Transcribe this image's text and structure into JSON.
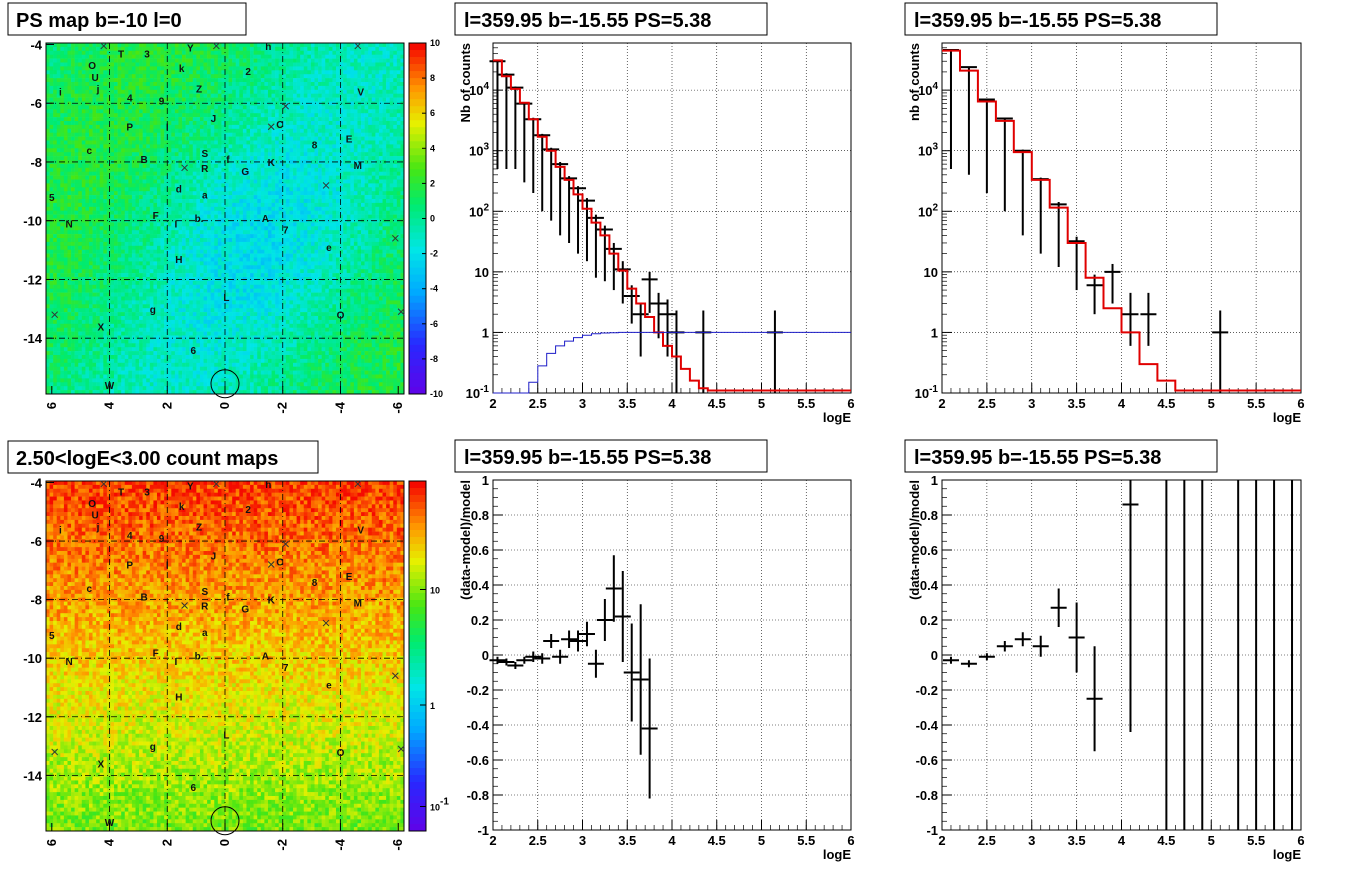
{
  "panels": {
    "map1_title": "PS map b=-10 l=0",
    "map2_title": "2.50<logE<3.00 count maps",
    "spec_title": "l=359.95 b=-15.55 PS=5.38"
  },
  "chart_data": [
    {
      "id": "ps-map",
      "type": "heatmap",
      "title": "PS map b=-10 l=0",
      "x_tick_labels": [
        "6",
        "4",
        "2",
        "0",
        "-2",
        "-4",
        "-6"
      ],
      "y_tick_labels": [
        "-4",
        "-6",
        "-8",
        "-10",
        "-12",
        "-14"
      ],
      "xlim": [
        6.2,
        -6.2
      ],
      "ylim": [
        -15.9,
        -3.95
      ],
      "colorbar_labels": [
        "10",
        "8",
        "6",
        "4",
        "2",
        "0",
        "-2",
        "-4",
        "-6",
        "-8",
        "-10"
      ],
      "zlim": [
        -10,
        10
      ],
      "sources": [
        {
          "label": "O",
          "l": 4.6,
          "b": -4.7
        },
        {
          "label": "U",
          "l": 4.5,
          "b": -5.1
        },
        {
          "label": "T",
          "l": 3.6,
          "b": -4.3
        },
        {
          "label": "3",
          "l": 2.7,
          "b": -4.3
        },
        {
          "label": "Y",
          "l": 1.2,
          "b": -4.1
        },
        {
          "label": "h",
          "l": -1.5,
          "b": -4.05
        },
        {
          "label": "k",
          "l": 1.5,
          "b": -4.8
        },
        {
          "label": "2",
          "l": -0.8,
          "b": -4.9
        },
        {
          "label": "i",
          "l": 5.7,
          "b": -5.6
        },
        {
          "label": "j",
          "l": 4.4,
          "b": -5.5
        },
        {
          "label": "4",
          "l": 3.3,
          "b": -5.8
        },
        {
          "label": "9",
          "l": 2.2,
          "b": -5.9
        },
        {
          "label": "Z",
          "l": 0.9,
          "b": -5.5
        },
        {
          "label": "V",
          "l": -4.7,
          "b": -5.6
        },
        {
          "label": "P",
          "l": 3.3,
          "b": -6.8
        },
        {
          "label": "I",
          "l": 2.0,
          "b": -6.8
        },
        {
          "label": "J",
          "l": 0.4,
          "b": -6.5
        },
        {
          "label": "C",
          "l": -1.9,
          "b": -6.7
        },
        {
          "label": "c",
          "l": 4.7,
          "b": -7.6
        },
        {
          "label": "8",
          "l": -3.1,
          "b": -7.4
        },
        {
          "label": "E",
          "l": -4.3,
          "b": -7.2
        },
        {
          "label": "B",
          "l": 2.8,
          "b": -7.9
        },
        {
          "label": "S",
          "l": 0.7,
          "b": -7.7
        },
        {
          "label": "f",
          "l": -0.1,
          "b": -7.9
        },
        {
          "label": "R",
          "l": 0.7,
          "b": -8.2
        },
        {
          "label": "G",
          "l": -0.7,
          "b": -8.3
        },
        {
          "label": "K",
          "l": -1.6,
          "b": -8.0
        },
        {
          "label": "M",
          "l": -4.6,
          "b": -8.1
        },
        {
          "label": "d",
          "l": 1.6,
          "b": -8.9
        },
        {
          "label": "a",
          "l": 0.7,
          "b": -9.1
        },
        {
          "label": "5",
          "l": 6.0,
          "b": -9.2
        },
        {
          "label": "F",
          "l": 2.4,
          "b": -9.8
        },
        {
          "label": "I",
          "l": 1.7,
          "b": -10.1
        },
        {
          "label": "b.",
          "l": 0.9,
          "b": -9.9
        },
        {
          "label": "A",
          "l": -1.4,
          "b": -9.9
        },
        {
          "label": "7",
          "l": -2.1,
          "b": -10.3
        },
        {
          "label": "N",
          "l": 5.4,
          "b": -10.1
        },
        {
          "label": "e",
          "l": -3.6,
          "b": -10.9
        },
        {
          "label": "H",
          "l": 1.6,
          "b": -11.3
        },
        {
          "label": "L",
          "l": -0.05,
          "b": -12.6
        },
        {
          "label": "g",
          "l": 2.5,
          "b": -13.0
        },
        {
          "label": "O",
          "l": -4.0,
          "b": -13.2
        },
        {
          "label": "X",
          "l": 4.3,
          "b": -13.6
        },
        {
          "label": "6",
          "l": 1.1,
          "b": -14.4
        },
        {
          "label": "W",
          "l": 4.0,
          "b": -15.6
        }
      ],
      "crosses": [
        {
          "l": 4.2,
          "b": -4.05
        },
        {
          "l": 0.3,
          "b": -4.05
        },
        {
          "l": -4.6,
          "b": -4.05
        },
        {
          "l": -2.1,
          "b": -6.1
        },
        {
          "l": -1.6,
          "b": -6.8
        },
        {
          "l": -3.5,
          "b": -8.8
        },
        {
          "l": 1.4,
          "b": -8.2
        },
        {
          "l": -5.9,
          "b": -10.6
        },
        {
          "l": 5.9,
          "b": -13.2
        },
        {
          "l": -6.1,
          "b": -13.1
        }
      ],
      "circle": {
        "l": 0.0,
        "b": -15.55
      }
    },
    {
      "id": "count-map",
      "type": "heatmap",
      "title": "2.50<logE<3.00 count maps",
      "x_tick_labels": [
        "6",
        "4",
        "2",
        "0",
        "-2",
        "-4",
        "-6"
      ],
      "y_tick_labels": [
        "-4",
        "-6",
        "-8",
        "-10",
        "-12",
        "-14"
      ],
      "xlim": [
        6.2,
        -6.2
      ],
      "ylim": [
        -15.9,
        -3.95
      ],
      "colorbar_labels": [
        "10",
        "1",
        "10^-1"
      ],
      "colorbar_scale": "log"
    },
    {
      "id": "spectrum-1",
      "type": "line",
      "title": "l=359.95 b=-15.55 PS=5.38",
      "xlabel": "logE",
      "ylabel": "Nb of counts",
      "xlim": [
        2,
        6
      ],
      "ylim": [
        0.1,
        60000
      ],
      "yscale": "log",
      "x_ticks": [
        "2",
        "2.5",
        "3",
        "3.5",
        "4",
        "4.5",
        "5",
        "5.5",
        "6"
      ],
      "y_ticks": [
        "10^-1",
        "1",
        "10",
        "10^2",
        "10^3",
        "10^4"
      ],
      "grid": true,
      "series": [
        {
          "kind": "points",
          "x": [
            2.05,
            2.15,
            2.25,
            2.35,
            2.45,
            2.55,
            2.65,
            2.75,
            2.85,
            2.95,
            3.05,
            3.15,
            3.25,
            3.35,
            3.45,
            3.55,
            3.65,
            3.75,
            3.85,
            3.95,
            4.05,
            4.35,
            5.15
          ],
          "y": [
            30000,
            18000,
            11000,
            6000,
            3300,
            1800,
            1050,
            600,
            350,
            240,
            150,
            78,
            50,
            24,
            11,
            4,
            2,
            7.5,
            3,
            2,
            1,
            1,
            1
          ],
          "yerr_lo": [
            29500,
            17500,
            10500,
            5700,
            3100,
            1700,
            980,
            560,
            320,
            220,
            135,
            70,
            43,
            19,
            8,
            2.6,
            1.6,
            5.4,
            2.2,
            1.6,
            0.9,
            0.9,
            0.9
          ],
          "yerr_hi": [
            31000,
            19000,
            11500,
            6300,
            3500,
            1900,
            1120,
            650,
            380,
            260,
            165,
            88,
            58,
            30,
            15,
            6,
            3,
            10,
            4.5,
            3.5,
            2.3,
            2.3,
            2.3
          ]
        },
        {
          "kind": "step",
          "color": "#e00000",
          "edges": [
            2.0,
            2.1,
            2.2,
            2.3,
            2.4,
            2.5,
            2.6,
            2.7,
            2.8,
            2.9,
            3.0,
            3.1,
            3.2,
            3.3,
            3.4,
            3.5,
            3.6,
            3.7,
            3.8,
            3.9,
            4.0,
            4.1,
            4.2,
            4.3,
            4.4,
            4.5,
            6.0
          ],
          "y": [
            31000,
            17000,
            10500,
            6200,
            3300,
            1700,
            1000,
            540,
            330,
            190,
            110,
            65,
            40,
            20,
            10.5,
            5.3,
            3,
            1.8,
            1,
            0.6,
            0.4,
            0.25,
            0.16,
            0.12,
            0.11,
            0.11
          ]
        },
        {
          "kind": "step",
          "color": "#1c1cc8",
          "edges": [
            2.0,
            2.4,
            2.5,
            2.6,
            2.7,
            2.8,
            2.9,
            3.0,
            3.1,
            3.2,
            3.3,
            3.4,
            6.0
          ],
          "y": [
            0.1,
            0.15,
            0.28,
            0.45,
            0.6,
            0.72,
            0.82,
            0.9,
            0.95,
            0.98,
            0.99,
            1.0
          ]
        }
      ]
    },
    {
      "id": "spectrum-2",
      "type": "line",
      "title": "l=359.95 b=-15.55 PS=5.38",
      "xlabel": "logE",
      "ylabel": "nb of counts",
      "xlim": [
        2,
        6
      ],
      "ylim": [
        0.1,
        60000
      ],
      "yscale": "log",
      "x_ticks": [
        "2",
        "2.5",
        "3",
        "3.5",
        "4",
        "4.5",
        "5",
        "5.5",
        "6"
      ],
      "y_ticks": [
        "10^-1",
        "1",
        "10",
        "10^2",
        "10^3",
        "10^4"
      ],
      "grid": true,
      "series": [
        {
          "kind": "points",
          "x": [
            2.1,
            2.3,
            2.5,
            2.7,
            2.9,
            3.1,
            3.3,
            3.5,
            3.7,
            3.9,
            4.1,
            4.3,
            5.1
          ],
          "y": [
            46000,
            24000,
            7000,
            3400,
            1000,
            340,
            130,
            32,
            6,
            10,
            2,
            2,
            1
          ],
          "yerr_lo": [
            45500,
            23600,
            6800,
            3300,
            960,
            320,
            118,
            27,
            4,
            7,
            1.4,
            1.4,
            0.9
          ],
          "yerr_hi": [
            46500,
            24400,
            7200,
            3500,
            1040,
            360,
            142,
            38,
            9,
            13.5,
            4.5,
            4.5,
            2.3
          ]
        },
        {
          "kind": "step",
          "color": "#e00000",
          "edges": [
            2.0,
            2.2,
            2.4,
            2.6,
            2.8,
            3.0,
            3.2,
            3.4,
            3.6,
            3.8,
            4.0,
            4.2,
            4.4,
            4.6,
            6.0
          ],
          "y": [
            45000,
            21000,
            6500,
            3100,
            950,
            330,
            115,
            30,
            8,
            2.5,
            1,
            0.3,
            0.16,
            0.11
          ]
        }
      ]
    },
    {
      "id": "residual-1",
      "type": "scatter",
      "title": "l=359.95 b=-15.55 PS=5.38",
      "xlabel": "logE",
      "ylabel": "(data-model)/model",
      "xlim": [
        2,
        6
      ],
      "ylim": [
        -1,
        1
      ],
      "x_ticks": [
        "2",
        "2.5",
        "3",
        "3.5",
        "4",
        "4.5",
        "5",
        "5.5",
        "6"
      ],
      "y_ticks": [
        "-1",
        "-0.8",
        "-0.6",
        "-0.4",
        "-0.2",
        "0",
        "0.2",
        "0.4",
        "0.6",
        "0.8",
        "1"
      ],
      "grid": true,
      "series": [
        {
          "kind": "points",
          "x": [
            2.05,
            2.15,
            2.25,
            2.35,
            2.45,
            2.55,
            2.65,
            2.75,
            2.85,
            2.95,
            3.05,
            3.15,
            3.25,
            3.35,
            3.45,
            3.55,
            3.65,
            3.75
          ],
          "y": [
            -0.03,
            -0.04,
            -0.06,
            -0.03,
            -0.01,
            -0.02,
            0.08,
            -0.01,
            0.09,
            0.08,
            0.12,
            -0.05,
            0.2,
            0.38,
            0.22,
            -0.1,
            -0.14,
            -0.42
          ],
          "yerr": [
            0.02,
            0.02,
            0.02,
            0.02,
            0.03,
            0.03,
            0.04,
            0.04,
            0.05,
            0.06,
            0.07,
            0.08,
            0.12,
            0.19,
            0.26,
            0.28,
            0.43,
            0.4
          ]
        }
      ]
    },
    {
      "id": "residual-2",
      "type": "scatter",
      "title": "l=359.95 b=-15.55 PS=5.38",
      "xlabel": "logE",
      "ylabel": "(data-model)/model",
      "xlim": [
        2,
        6
      ],
      "ylim": [
        -1,
        1
      ],
      "x_ticks": [
        "2",
        "2.5",
        "3",
        "3.5",
        "4",
        "4.5",
        "5",
        "5.5",
        "6"
      ],
      "y_ticks": [
        "-1",
        "-0.8",
        "-0.6",
        "-0.4",
        "-0.2",
        "0",
        "0.2",
        "0.4",
        "0.6",
        "0.8",
        "1"
      ],
      "grid": true,
      "series": [
        {
          "kind": "points",
          "x": [
            2.1,
            2.3,
            2.5,
            2.7,
            2.9,
            3.1,
            3.3,
            3.5,
            3.7,
            4.1
          ],
          "y": [
            -0.03,
            -0.05,
            -0.01,
            0.05,
            0.09,
            0.05,
            0.27,
            0.1,
            -0.25,
            0.86
          ],
          "yerr": [
            0.02,
            0.02,
            0.02,
            0.03,
            0.04,
            0.06,
            0.11,
            0.2,
            0.3,
            1.3
          ]
        },
        {
          "kind": "vlines",
          "x": [
            4.5,
            4.7,
            4.9,
            5.3,
            5.5,
            5.7,
            5.9
          ]
        }
      ]
    }
  ]
}
